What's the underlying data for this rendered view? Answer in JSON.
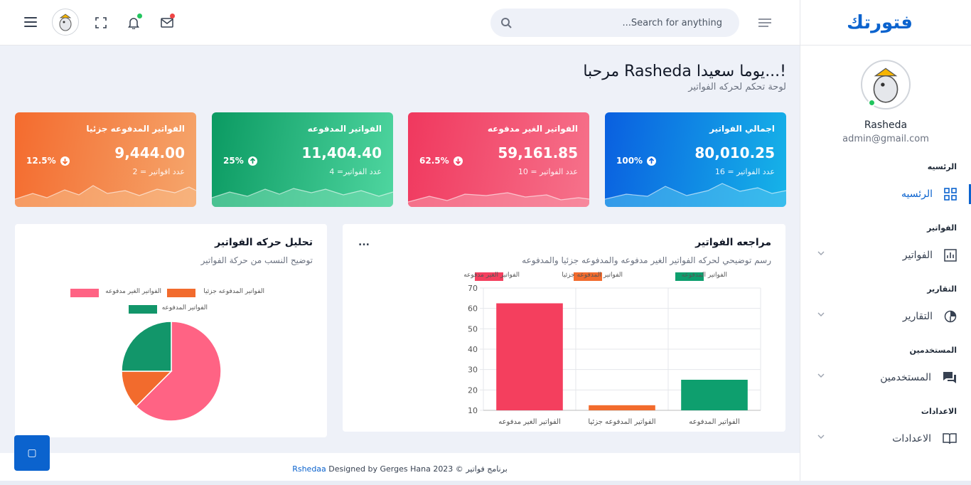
{
  "brand": {
    "name": "فتورتك"
  },
  "user": {
    "name": "Rasheda",
    "email": "admin@gmail.com"
  },
  "search": {
    "placeholder": "...Search for anything"
  },
  "welcome": {
    "title": "مرحبا Rasheda يوما سعيدا...!",
    "subtitle": "لوحة تحكم لحركه الفواتير"
  },
  "sidebar": {
    "sections": [
      {
        "title": "الرئسيه",
        "item": "الرئسيه",
        "icon": "dashboard-icon",
        "active": true
      },
      {
        "title": "الفواتير",
        "item": "الفواتير",
        "icon": "bar-chart-icon"
      },
      {
        "title": "التقارير",
        "item": "التقارير",
        "icon": "pie-chart-icon"
      },
      {
        "title": "المستخدمين",
        "item": "المستخدمين",
        "icon": "chat-icon"
      },
      {
        "title": "الاعدادات",
        "item": "الاعدادات",
        "icon": "book-icon"
      }
    ]
  },
  "cards": [
    {
      "title": "اجمالي الفواتير",
      "value": "80,010.25",
      "sub": "عدد الفواتير = 16",
      "pct": "100%",
      "direction": "up",
      "from": "#0a5fe0",
      "to": "#16b4e8",
      "wave": "#55c4f0"
    },
    {
      "title": "الفواتير الغير مدفوعه",
      "value": "59,161.85",
      "sub": "عدد الفواتير = 10",
      "pct": "62.5%",
      "direction": "down",
      "from": "#f0385e",
      "to": "#f6728b",
      "wave": "#f79aab"
    },
    {
      "title": "الفواتير المدفوعه",
      "value": "11,404.40",
      "sub": "عدد الفواتير= 4",
      "pct": "25%",
      "direction": "up",
      "from": "#0b9a62",
      "to": "#4fd6a0",
      "wave": "#7adfb5"
    },
    {
      "title": "الفواتير المدفوعه جزئيا",
      "value": "9,444.00",
      "sub": "عدد افواتير = 2",
      "pct": "12.5%",
      "direction": "down",
      "from": "#f46b2e",
      "to": "#f5a66c",
      "wave": "#f8be8a"
    }
  ],
  "bar_panel": {
    "title": "مراجعه الفواتير",
    "subtitle": "رسم توضيحي لحركه الفواتير الغير مدفوعه والمدفوعه جزئيا والمدفوعه",
    "more": "..."
  },
  "pie_panel": {
    "title": "تحليل حركه الفواتير",
    "subtitle": "توضيح النسب من حركة الفواتير"
  },
  "chart_data": [
    {
      "type": "bar",
      "categories": [
        "الفواتير الغير مدفوعه",
        "الفواتير المدفوعه جزئيا",
        "الفواتير المدفوعه"
      ],
      "series": [
        {
          "name": "الفواتير الغير مدفوعه",
          "values": [
            62.5,
            null,
            null
          ],
          "color": "#f43f5e"
        },
        {
          "name": "الفواتير المدفوعه جزئيا",
          "values": [
            null,
            12.5,
            null
          ],
          "color": "#f26b2d"
        },
        {
          "name": "الفواتير المدفوعه",
          "values": [
            null,
            null,
            25
          ],
          "color": "#0e9f6e"
        }
      ],
      "yticks": [
        10,
        20,
        30,
        40,
        50,
        60,
        70
      ],
      "ylim": [
        10,
        70
      ],
      "grid": true,
      "legend": "top"
    },
    {
      "type": "pie",
      "labels": [
        "الفواتير الغير مدفوعه",
        "الفواتير المدفوعه جزئيا",
        "الفواتير المدفوعه"
      ],
      "values": [
        62.5,
        12.5,
        25
      ],
      "colors": [
        "#ff6384",
        "#f26b2d",
        "#12966a"
      ],
      "legend": "top"
    }
  ],
  "footer": {
    "accent": "Rshedaa",
    "text": "Designed by Gerges Hana 2023 © برنامج فواتير"
  },
  "float_button": {
    "label": "▢"
  }
}
